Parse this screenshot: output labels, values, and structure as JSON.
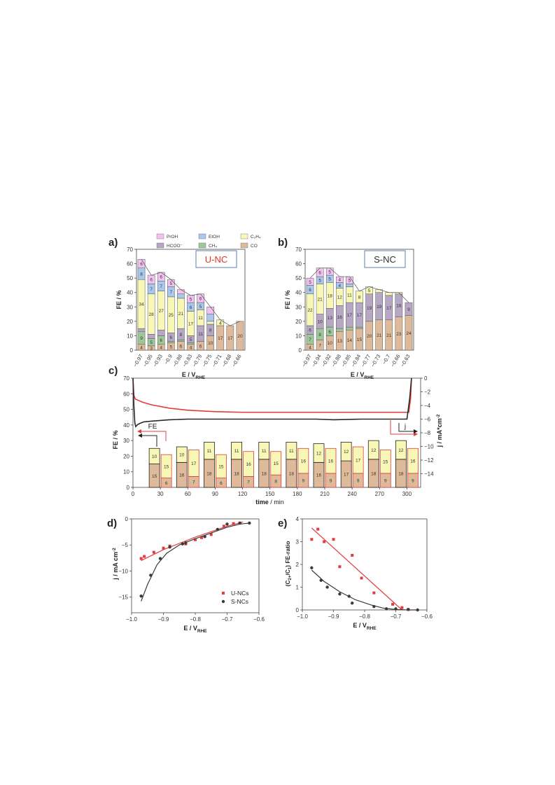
{
  "panels": {
    "a": {
      "letter": "a)"
    },
    "b": {
      "letter": "b)"
    },
    "c": {
      "letter": "c)"
    },
    "d": {
      "letter": "d)"
    },
    "e": {
      "letter": "e)"
    }
  },
  "colors": {
    "PrOH": "#f3c2f0",
    "EtOH": "#a9c8ee",
    "C2H4": "#f8f7b6",
    "HCOO-": "#b6a8c5",
    "CH4": "#9ec79a",
    "CO": "#dfba9a",
    "U_line": "#e03c3c",
    "S_line": "#3a3a3a",
    "label_red": "#e8302a",
    "box_border": "#4a6fa5"
  },
  "legend_a": [
    {
      "key": "PrOH",
      "text": "PrOH"
    },
    {
      "key": "EtOH",
      "text": "EtOH"
    },
    {
      "key": "C2H4",
      "text": "C₂H₄"
    },
    {
      "key": "HCOO-",
      "text": "HCOO⁻"
    },
    {
      "key": "CH4",
      "text": "CH₄"
    },
    {
      "key": "CO",
      "text": "CO"
    }
  ],
  "chart_data": [
    {
      "panel": "a",
      "type": "bar",
      "stacked": true,
      "label_box": "U-NC",
      "ylabel": "FE / %",
      "xlabel": "E / V",
      "xlabel_sub": "RHE",
      "ylim": [
        0,
        70
      ],
      "yticks": [
        0,
        10,
        20,
        30,
        40,
        50,
        60,
        70
      ],
      "categories": [
        "-0.97",
        "-0.95",
        "-0.93",
        "-0.9",
        "-0.88",
        "-0.83",
        "-0.79",
        "-0.75",
        "-0.71",
        "-0.68",
        "-0.66"
      ],
      "stack_order": [
        "CO",
        "CH4",
        "HCOO-",
        "C2H4",
        "EtOH",
        "PrOH"
      ],
      "series": [
        {
          "key": "CO",
          "values": [
            4,
            3,
            4,
            5,
            6,
            4,
            6,
            10,
            17,
            17,
            20
          ],
          "labels": [
            "4",
            "3",
            "4",
            "5",
            "6",
            "4",
            "6",
            "10",
            "17",
            "17",
            "20"
          ]
        },
        {
          "key": "CH4",
          "values": [
            9,
            5,
            6,
            1,
            1,
            1,
            0,
            0,
            0,
            0,
            0
          ],
          "labels": [
            "9",
            "5",
            "6",
            "",
            "",
            "",
            "",
            "",
            "",
            "",
            ""
          ]
        },
        {
          "key": "HCOO-",
          "values": [
            2,
            3,
            4,
            6,
            8,
            5,
            11,
            8,
            0,
            0,
            0
          ],
          "labels": [
            "",
            "",
            "",
            "6",
            "8",
            "5",
            "11",
            "8",
            "",
            "",
            ""
          ]
        },
        {
          "key": "C2H4",
          "values": [
            34,
            28,
            27,
            25,
            21,
            17,
            11,
            2,
            4,
            0,
            0
          ],
          "labels": [
            "34",
            "28",
            "27",
            "25",
            "21",
            "17",
            "11",
            "",
            "4",
            "",
            ""
          ]
        },
        {
          "key": "EtOH",
          "values": [
            8,
            7,
            7,
            7,
            3,
            6,
            5,
            5,
            0,
            0,
            0
          ],
          "labels": [
            "8",
            "7",
            "7",
            "7",
            "",
            "6",
            "5",
            "",
            "",
            "",
            ""
          ]
        },
        {
          "key": "PrOH",
          "values": [
            6,
            6,
            6,
            5,
            3,
            5,
            6,
            5,
            0,
            0,
            0
          ],
          "labels": [
            "6",
            "6",
            "6",
            "5",
            "",
            "5",
            "6",
            "",
            "",
            "",
            ""
          ]
        }
      ]
    },
    {
      "panel": "b",
      "type": "bar",
      "stacked": true,
      "label_box": "S-NC",
      "ylabel": "FE / %",
      "xlabel": "E / V",
      "xlabel_sub": "RHE",
      "ylim": [
        0,
        70
      ],
      "yticks": [
        0,
        10,
        20,
        30,
        40,
        50,
        60,
        70
      ],
      "categories": [
        "-0.97",
        "-0.94",
        "-0.92",
        "-0.88",
        "-0.85",
        "-0.84",
        "-0.77",
        "-0.73",
        "-0.7",
        "-0.66",
        "-0.63"
      ],
      "stack_order": [
        "CO",
        "CH4",
        "HCOO-",
        "C2H4",
        "EtOH",
        "PrOH"
      ],
      "series": [
        {
          "key": "CO",
          "values": [
            4,
            7,
            10,
            13,
            14,
            15,
            20,
            21,
            21,
            23,
            24
          ],
          "labels": [
            "4",
            "7",
            "10",
            "13",
            "14",
            "15",
            "20",
            "21",
            "21",
            "23",
            "24"
          ]
        },
        {
          "key": "CH4",
          "values": [
            7,
            8,
            6,
            2,
            2,
            1,
            0,
            0,
            0,
            0,
            0
          ],
          "labels": [
            "7",
            "8",
            "6",
            "",
            "",
            "",
            "",
            "",
            "",
            "",
            ""
          ]
        },
        {
          "key": "HCOO-",
          "values": [
            6,
            10,
            13,
            16,
            17,
            17,
            19,
            19,
            17,
            16,
            9
          ],
          "labels": [
            "6",
            "10",
            "13",
            "16",
            "17",
            "17",
            "19",
            "19",
            "17",
            "16",
            "9"
          ]
        },
        {
          "key": "C2H4",
          "values": [
            22,
            21,
            18,
            12,
            11,
            8,
            5,
            2,
            2,
            1,
            0
          ],
          "labels": [
            "22",
            "21",
            "18",
            "12",
            "11",
            "8",
            "5",
            "",
            "",
            "",
            ""
          ]
        },
        {
          "key": "EtOH",
          "values": [
            6,
            5,
            5,
            4,
            2,
            0,
            0,
            0,
            0,
            0,
            0
          ],
          "labels": [
            "6",
            "5",
            "5",
            "4",
            "",
            "",
            "",
            "",
            "",
            "",
            ""
          ]
        },
        {
          "key": "PrOH",
          "values": [
            5,
            6,
            5,
            4,
            5,
            0,
            0,
            0,
            0,
            0,
            0
          ],
          "labels": [
            "5",
            "6",
            "5",
            "4",
            "5",
            "",
            "",
            "",
            "",
            "",
            ""
          ]
        }
      ]
    },
    {
      "panel": "c",
      "type": "bar",
      "stacked": true,
      "ylabel": "FE / %",
      "y2label": "j / mA*cm",
      "y2label_sup": "-2",
      "xlabel_bold": "time",
      "xlabel_rest": " / min",
      "xlim": [
        0,
        315
      ],
      "xticks": [
        0,
        30,
        60,
        90,
        120,
        150,
        180,
        210,
        240,
        270,
        300
      ],
      "ylim": [
        0,
        70
      ],
      "yticks": [
        0,
        10,
        20,
        30,
        40,
        50,
        60,
        70
      ],
      "y2lim": [
        -16,
        0
      ],
      "y2ticks": [
        0,
        -2,
        -4,
        -6,
        -8,
        -10,
        -12,
        -14
      ],
      "annotation_FE": "FE",
      "annotation_j": "j",
      "bar_sets": [
        {
          "name": "S-NC",
          "border": "#222222",
          "CO": [
            15,
            16,
            18,
            18,
            18,
            18,
            16,
            17,
            18,
            18
          ],
          "C2H4": [
            10,
            10,
            11,
            11,
            11,
            11,
            12,
            12,
            12,
            12
          ]
        },
        {
          "name": "U-NC",
          "border": "#e03c3c",
          "CO": [
            6,
            7,
            6,
            7,
            8,
            9,
            9,
            9,
            9,
            9
          ],
          "C2H4": [
            15,
            17,
            15,
            16,
            15,
            16,
            16,
            17,
            15,
            16
          ]
        }
      ],
      "bar_times": [
        30,
        60,
        90,
        120,
        150,
        180,
        210,
        240,
        270,
        300
      ],
      "current_lines": [
        {
          "name": "U-NC",
          "color": "#e03c3c",
          "x": [
            0,
            1,
            2,
            3,
            5,
            10,
            20,
            40,
            60,
            90,
            120,
            150,
            180,
            210,
            240,
            270,
            295,
            302,
            304,
            305
          ],
          "y": [
            0,
            -2.5,
            -2.9,
            -3.1,
            -3.2,
            -3.5,
            -3.9,
            -4.4,
            -4.7,
            -4.9,
            -5.0,
            -5.0,
            -5.0,
            -5.0,
            -5.0,
            -5.0,
            -5.0,
            -5.0,
            -3.0,
            0
          ]
        },
        {
          "name": "S-NC",
          "color": "#2a2a2a",
          "x": [
            0,
            1,
            2,
            3,
            5,
            8,
            12,
            20,
            40,
            60,
            100,
            150,
            200,
            220,
            250,
            280,
            300,
            303,
            305
          ],
          "y": [
            0,
            -4,
            -6.5,
            -7.1,
            -6.8,
            -6.6,
            -6.4,
            -6.3,
            -6.1,
            -6.0,
            -6.0,
            -6.0,
            -6.0,
            -6.1,
            -6.0,
            -6.0,
            -6.0,
            -3,
            0
          ]
        }
      ]
    },
    {
      "panel": "d",
      "type": "scatter",
      "ylabel": "j / mA cm",
      "ylabel_sup": "-2",
      "xlabel": "E / V",
      "xlabel_sub": "RHE",
      "xlim": [
        -1.0,
        -0.6
      ],
      "xticks": [
        -1.0,
        -0.9,
        -0.8,
        -0.7,
        -0.6
      ],
      "xticklabels": [
        "-1.0",
        "-0.9",
        "-0.8",
        "-0.7",
        "-0.6"
      ],
      "ylim": [
        -18,
        0
      ],
      "yticks": [
        0,
        -5,
        -10,
        -15
      ],
      "legend_position": "bottom-right",
      "series": [
        {
          "name": "U-NCs",
          "color": "#e03c3c",
          "marker": "square",
          "x": [
            -0.97,
            -0.96,
            -0.93,
            -0.9,
            -0.88,
            -0.83,
            -0.8,
            -0.78,
            -0.75,
            -0.71,
            -0.68,
            -0.66
          ],
          "y": [
            -7.6,
            -7.2,
            -6.4,
            -5.6,
            -5.2,
            -4.8,
            -4.0,
            -3.6,
            -3.0,
            -1.4,
            -0.9,
            -0.8
          ],
          "fit_x": [
            -0.97,
            -0.9,
            -0.8,
            -0.7,
            -0.65
          ],
          "fit_y": [
            -8.0,
            -5.9,
            -3.5,
            -1.4,
            -0.6
          ]
        },
        {
          "name": "S-NCs",
          "color": "#3a3a3a",
          "marker": "circle",
          "x": [
            -0.97,
            -0.94,
            -0.91,
            -0.88,
            -0.84,
            -0.83,
            -0.77,
            -0.73,
            -0.7,
            -0.66,
            -0.63
          ],
          "y": [
            -14.8,
            -10.8,
            -7.6,
            -5.4,
            -4.8,
            -4.6,
            -3.4,
            -2.0,
            -1.0,
            -0.8,
            -0.8
          ],
          "fit_x": [
            -0.97,
            -0.95,
            -0.92,
            -0.89,
            -0.85,
            -0.8,
            -0.75,
            -0.7,
            -0.66,
            -0.63
          ],
          "fit_y": [
            -15.8,
            -12.6,
            -8.8,
            -6.6,
            -5.0,
            -3.8,
            -2.7,
            -1.6,
            -1.0,
            -0.8
          ]
        }
      ]
    },
    {
      "panel": "e",
      "type": "scatter",
      "ylabel": "(C2+/C1) FE-ratio",
      "ylabel_parts": {
        "pre": "(C",
        "sub1": "2+",
        "mid": "/C",
        "sub2": "1",
        "post": ") FE-ratio"
      },
      "xlabel": "E / V",
      "xlabel_sub": "RHE",
      "xlim": [
        -1.0,
        -0.6
      ],
      "xticks": [
        -1.0,
        -0.9,
        -0.8,
        -0.7,
        -0.6
      ],
      "xticklabels": [
        "-1.0",
        "-0.9",
        "-0.8",
        "-0.7",
        "-0.6"
      ],
      "ylim": [
        0,
        4
      ],
      "yticks": [
        0,
        1,
        2,
        3,
        4
      ],
      "series": [
        {
          "name": "U-NCs",
          "color": "#e03c3c",
          "marker": "square",
          "x": [
            -0.97,
            -0.95,
            -0.93,
            -0.9,
            -0.88,
            -0.84,
            -0.81,
            -0.77,
            -0.71,
            -0.68,
            -0.66
          ],
          "y": [
            3.1,
            3.55,
            3.0,
            3.1,
            1.9,
            2.4,
            1.4,
            0.75,
            0.25,
            0.1,
            0.02
          ],
          "fit_x": [
            -0.97,
            -0.68
          ],
          "fit_y": [
            3.6,
            0.0
          ]
        },
        {
          "name": "S-NCs",
          "color": "#3a3a3a",
          "marker": "circle",
          "x": [
            -0.97,
            -0.94,
            -0.92,
            -0.88,
            -0.85,
            -0.84,
            -0.77,
            -0.73,
            -0.7,
            -0.66,
            -0.63
          ],
          "y": [
            1.85,
            1.3,
            1.0,
            0.7,
            0.6,
            0.3,
            0.15,
            0.05,
            0.05,
            0.02,
            0.0
          ],
          "fit_x": [
            -0.97,
            -0.93,
            -0.88,
            -0.83,
            -0.78,
            -0.74,
            -0.7,
            -0.66,
            -0.63
          ],
          "fit_y": [
            1.75,
            1.25,
            0.8,
            0.45,
            0.22,
            0.08,
            0.02,
            0.0,
            0.0
          ]
        }
      ]
    }
  ]
}
